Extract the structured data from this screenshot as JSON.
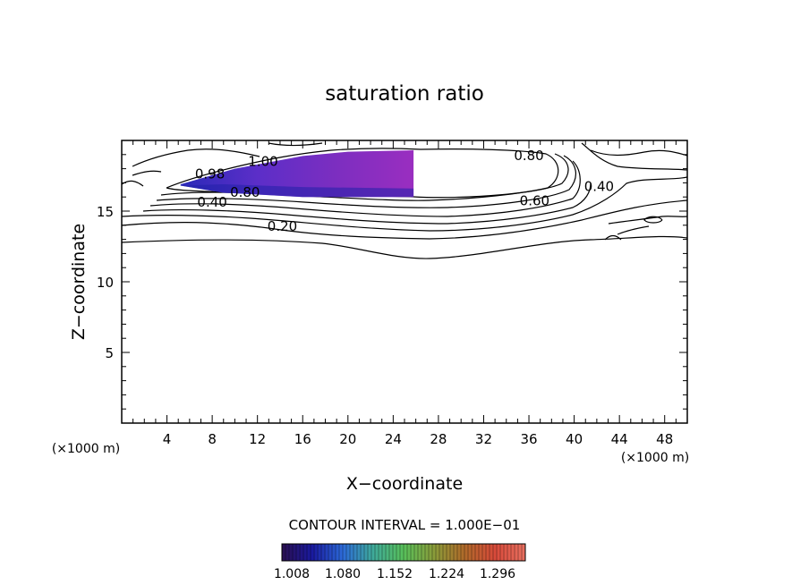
{
  "chart_data": {
    "type": "contour",
    "title": "saturation ratio",
    "xlabel": "X−coordinate",
    "ylabel": "Z−coordinate",
    "x_unit_left": "(×1000 m)",
    "x_unit_right": "(×1000 m)",
    "xlim": [
      0,
      50
    ],
    "ylim": [
      0,
      20
    ],
    "x_ticks": [
      4,
      8,
      12,
      16,
      20,
      24,
      28,
      32,
      36,
      40,
      44,
      48
    ],
    "y_ticks": [
      5,
      10,
      15
    ],
    "contour_interval_text": "CONTOUR INTERVAL = 1.000E−01",
    "contour_labels": [
      {
        "text": "0.20",
        "x": 14.2,
        "y": 13.8
      },
      {
        "text": "0.40",
        "x": 8.0,
        "y": 15.5
      },
      {
        "text": "0.80",
        "x": 10.9,
        "y": 16.2
      },
      {
        "text": "0.60",
        "x": 36.5,
        "y": 15.6
      },
      {
        "text": "0.40",
        "x": 42.2,
        "y": 16.6
      },
      {
        "text": "0.80",
        "x": 36.0,
        "y": 18.8
      },
      {
        "text": "1.00",
        "x": 12.5,
        "y": 18.4
      },
      {
        "text": "0.98",
        "x": 7.8,
        "y": 17.5
      }
    ],
    "colorbar": {
      "min": 1.008,
      "max": 1.296,
      "tick_labels": [
        "1.008",
        "1.080",
        "1.152",
        "1.224",
        "1.296"
      ],
      "colors": [
        "#2a0f50",
        "#1a1aa0",
        "#2c6ad8",
        "#3faa9a",
        "#58c05a",
        "#8a9c3a",
        "#b06a2a",
        "#d84a3a",
        "#e87060"
      ]
    },
    "shaded_region": {
      "x_range": [
        5.2,
        25.8
      ],
      "z_top": [
        [
          5.2,
          16.9
        ],
        [
          10,
          18.0
        ],
        [
          16,
          18.9
        ],
        [
          20,
          19.2
        ],
        [
          25.8,
          19.3
        ]
      ],
      "z_bottom": [
        [
          25.8,
          16.0
        ],
        [
          16,
          16.0
        ],
        [
          9,
          16.3
        ],
        [
          5.2,
          16.8
        ]
      ],
      "colors": [
        "#2a2ab8",
        "#5c2ec8",
        "#7c2ec0",
        "#9a2ec0"
      ]
    }
  }
}
